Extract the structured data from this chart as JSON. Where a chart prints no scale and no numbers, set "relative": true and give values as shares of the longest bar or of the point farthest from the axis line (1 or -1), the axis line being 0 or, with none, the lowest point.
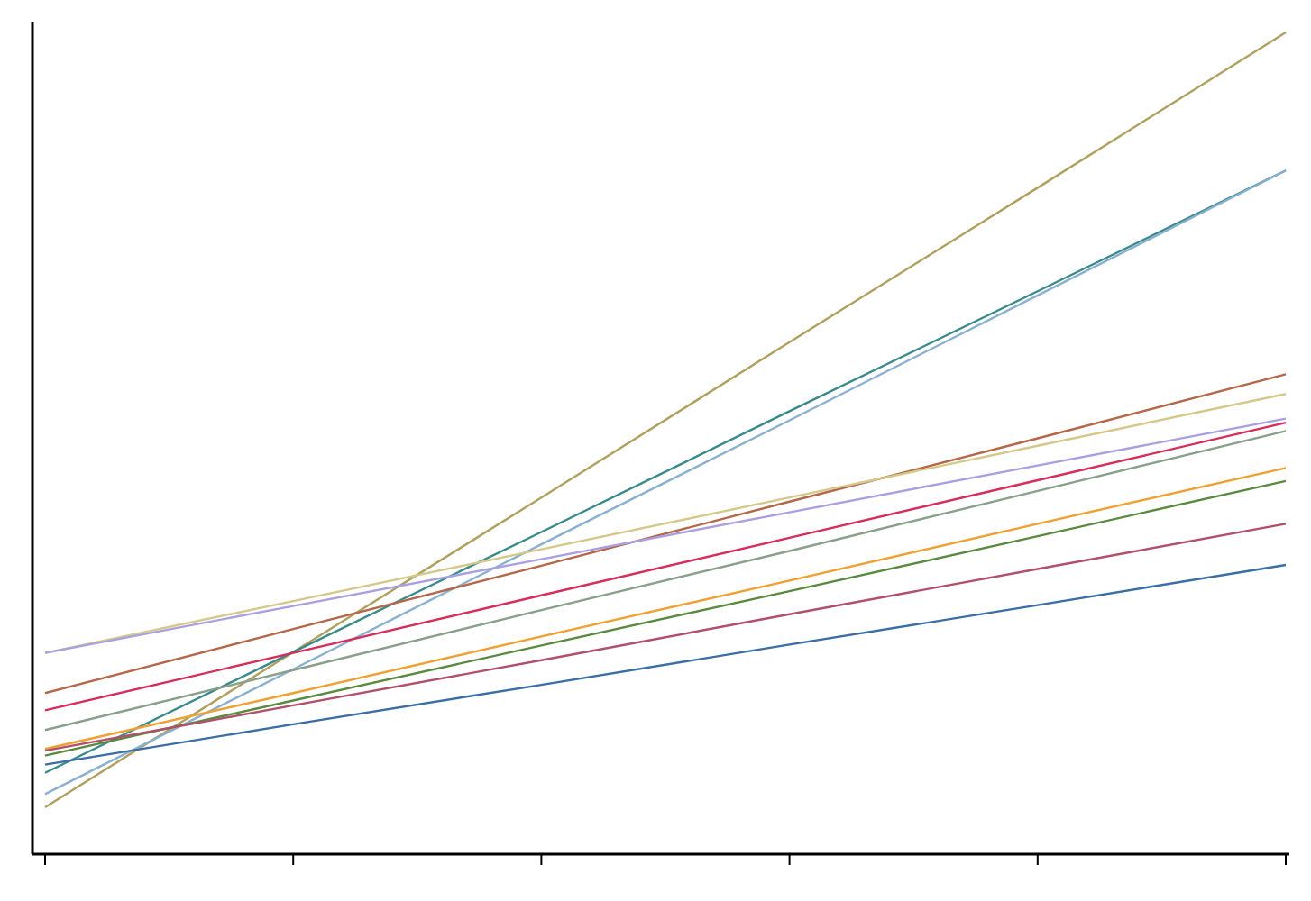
{
  "chart_data": {
    "type": "line",
    "relative": true,
    "categories": [
      null,
      null,
      null,
      null,
      null,
      null
    ],
    "marker": "none",
    "line_style": "solid",
    "series": [
      {
        "color": "#b0a060",
        "values": [
          0.057,
          0.246,
          0.434,
          0.623,
          0.811,
          1
        ]
      },
      {
        "color": "#3a8a8a",
        "values": [
          0.099,
          0.246,
          0.392,
          0.539,
          0.685,
          0.832
        ]
      },
      {
        "color": "#8ab0d0",
        "values": [
          0.073,
          0.225,
          0.377,
          0.528,
          0.68,
          0.832
        ]
      },
      {
        "color": "#b5674a",
        "values": [
          0.196,
          0.274,
          0.351,
          0.429,
          0.506,
          0.584
        ]
      },
      {
        "color": "#d4c98a",
        "values": [
          0.245,
          0.308,
          0.371,
          0.434,
          0.497,
          0.56
        ]
      },
      {
        "color": "#a8a0e0",
        "values": [
          0.245,
          0.302,
          0.359,
          0.416,
          0.473,
          0.53
        ]
      },
      {
        "color": "#d62d5a",
        "values": [
          0.175,
          0.245,
          0.315,
          0.385,
          0.455,
          0.525
        ]
      },
      {
        "color": "#8aa08a",
        "values": [
          0.151,
          0.224,
          0.297,
          0.369,
          0.442,
          0.515
        ]
      },
      {
        "color": "#f0a030",
        "values": [
          0.128,
          0.196,
          0.265,
          0.333,
          0.402,
          0.47
        ]
      },
      {
        "color": "#5a8a40",
        "values": [
          0.12,
          0.187,
          0.254,
          0.32,
          0.387,
          0.454
        ]
      },
      {
        "color": "#b0506a",
        "values": [
          0.126,
          0.181,
          0.236,
          0.292,
          0.347,
          0.402
        ]
      },
      {
        "color": "#3a6ea5",
        "values": [
          0.109,
          0.158,
          0.206,
          0.255,
          0.303,
          0.352
        ]
      }
    ]
  }
}
